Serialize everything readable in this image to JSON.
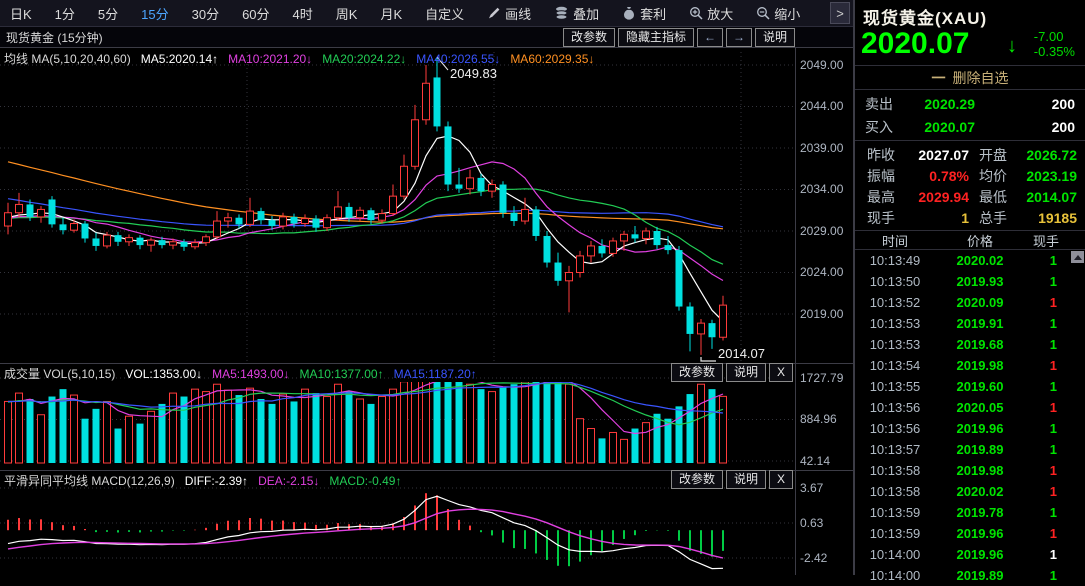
{
  "toolbar": {
    "items": [
      {
        "label": "日K"
      },
      {
        "label": "1分"
      },
      {
        "label": "5分"
      },
      {
        "label": "15分"
      },
      {
        "label": "30分"
      },
      {
        "label": "60分"
      },
      {
        "label": "4时"
      },
      {
        "label": "周K"
      },
      {
        "label": "月K"
      },
      {
        "label": "自定义"
      },
      {
        "label": "画线",
        "icon": "pencil-icon"
      },
      {
        "label": "叠加",
        "icon": "stack-icon"
      },
      {
        "label": "套利",
        "icon": "moneybag-icon"
      },
      {
        "label": "放大",
        "icon": "zoom-in-icon"
      },
      {
        "label": "缩小",
        "icon": "zoom-out-icon"
      }
    ],
    "active_index": 3,
    "more_label": ">"
  },
  "chart_header": {
    "title": "现货黄金 (15分钟)",
    "buttons": [
      "改参数",
      "隐藏主指标",
      "←",
      "→",
      "说明"
    ]
  },
  "ma_legend": {
    "prefix": "均线 MA(5,10,20,40,60)",
    "items": [
      {
        "text": "MA5:2020.14↑",
        "color": "#ffffff"
      },
      {
        "text": "MA10:2021.20↓",
        "color": "#e040e0"
      },
      {
        "text": "MA20:2024.22↓",
        "color": "#22cc55"
      },
      {
        "text": "MA40:2026.55↓",
        "color": "#3a55ff"
      },
      {
        "text": "MA60:2029.35↓",
        "color": "#ff9022"
      }
    ]
  },
  "main_chart": {
    "y_labels": [
      "2049.00",
      "2044.00",
      "2039.00",
      "2034.00",
      "2029.00",
      "2024.00",
      "2019.00"
    ],
    "high_annotation": "2049.83",
    "low_annotation": "2014.07"
  },
  "volume_pane": {
    "title": "成交量 VOL(5,10,15)",
    "legend": [
      {
        "text": "VOL:1353.00↓",
        "color": "#ffffff"
      },
      {
        "text": "MA5:1493.00↓",
        "color": "#e040e0"
      },
      {
        "text": "MA10:1377.00↑",
        "color": "#22cc55"
      },
      {
        "text": "MA15:1187.20↑",
        "color": "#3a55ff"
      }
    ],
    "buttons": [
      "改参数",
      "说明",
      "X"
    ],
    "y_labels": [
      "1727.79",
      "884.96",
      "42.14"
    ]
  },
  "macd_pane": {
    "title": "平滑异同平均线 MACD(12,26,9)",
    "legend": [
      {
        "text": "DIFF:-2.39↑",
        "color": "#ffffff"
      },
      {
        "text": "DEA:-2.15↓",
        "color": "#e040e0"
      },
      {
        "text": "MACD:-0.49↑",
        "color": "#22cc55"
      }
    ],
    "buttons": [
      "改参数",
      "说明",
      "X"
    ],
    "y_labels": [
      "3.67",
      "0.63",
      "-2.42"
    ]
  },
  "quote_panel": {
    "name": "现货黄金(XAU)",
    "price": "2020.07",
    "arrow": "↓",
    "change": "-7.00",
    "change_pct": "-0.35%",
    "remove_minus": "一",
    "remove_label": "删除自选",
    "depth": [
      {
        "label": "卖出",
        "price": "2020.29",
        "qty": "200"
      },
      {
        "label": "买入",
        "price": "2020.07",
        "qty": "200"
      }
    ],
    "quotes": [
      {
        "l1": "昨收",
        "v1": "2027.07",
        "c1": "w",
        "l2": "开盘",
        "v2": "2026.72",
        "c2": "g"
      },
      {
        "l1": "振幅",
        "v1": "0.78%",
        "c1": "r",
        "l2": "均价",
        "v2": "2023.19",
        "c2": "g"
      },
      {
        "l1": "最高",
        "v1": "2029.94",
        "c1": "r",
        "l2": "最低",
        "v2": "2014.07",
        "c2": "g"
      },
      {
        "l1": "现手",
        "v1": "1",
        "c1": "y",
        "l2": "总手",
        "v2": "19185",
        "c2": "y"
      }
    ],
    "tick_headers": [
      "时间",
      "价格",
      "现手"
    ],
    "ticks": [
      {
        "time": "10:13:49",
        "price": "2020.02",
        "vol": "1",
        "vc": "g"
      },
      {
        "time": "10:13:50",
        "price": "2019.93",
        "vol": "1",
        "vc": "g"
      },
      {
        "time": "10:13:52",
        "price": "2020.09",
        "vol": "1",
        "vc": "r"
      },
      {
        "time": "10:13:53",
        "price": "2019.91",
        "vol": "1",
        "vc": "g"
      },
      {
        "time": "10:13:53",
        "price": "2019.68",
        "vol": "1",
        "vc": "g"
      },
      {
        "time": "10:13:54",
        "price": "2019.98",
        "vol": "1",
        "vc": "r"
      },
      {
        "time": "10:13:55",
        "price": "2019.60",
        "vol": "1",
        "vc": "g"
      },
      {
        "time": "10:13:56",
        "price": "2020.05",
        "vol": "1",
        "vc": "r"
      },
      {
        "time": "10:13:56",
        "price": "2019.96",
        "vol": "1",
        "vc": "g"
      },
      {
        "time": "10:13:57",
        "price": "2019.89",
        "vol": "1",
        "vc": "g"
      },
      {
        "time": "10:13:58",
        "price": "2019.98",
        "vol": "1",
        "vc": "r"
      },
      {
        "time": "10:13:58",
        "price": "2020.02",
        "vol": "1",
        "vc": "r"
      },
      {
        "time": "10:13:59",
        "price": "2019.78",
        "vol": "1",
        "vc": "g"
      },
      {
        "time": "10:13:59",
        "price": "2019.96",
        "vol": "1",
        "vc": "r"
      },
      {
        "time": "10:14:00",
        "price": "2019.96",
        "vol": "1",
        "vc": "w"
      },
      {
        "time": "10:14:00",
        "price": "2019.89",
        "vol": "1",
        "vc": "g"
      }
    ]
  },
  "colors": {
    "up": "#ff3b3b",
    "down": "#00e0e0",
    "grid": "#33343c",
    "separator": "#3c3c46",
    "ma5": "#ffffff",
    "ma10": "#e040e0",
    "ma20": "#22cc55",
    "ma40": "#3a55ff",
    "ma60": "#ff9022",
    "macd_pos": "#ff3b3b",
    "macd_neg": "#00cc44"
  },
  "chart_data": {
    "type": "candlestick",
    "period": "15min",
    "high": 2049.83,
    "low": 2014.07,
    "last": 2020.07,
    "y_axis_main": [
      2049,
      2044,
      2039,
      2034,
      2029,
      2024,
      2019
    ],
    "y_axis_vol": [
      1727.79,
      884.96,
      42.14
    ],
    "y_axis_macd": [
      3.67,
      0.63,
      -2.42
    ],
    "candles": [
      [
        2029.6,
        2032.4,
        2028.6,
        2031.2
      ],
      [
        2031.2,
        2033.6,
        2030.6,
        2032.2
      ],
      [
        2032.2,
        2032.8,
        2030.2,
        2030.7
      ],
      [
        2030.7,
        2032.0,
        2030.0,
        2031.6
      ],
      [
        2032.8,
        2033.2,
        2029.4,
        2029.8
      ],
      [
        2029.8,
        2030.6,
        2028.6,
        2029.1
      ],
      [
        2029.1,
        2030.4,
        2028.8,
        2029.9
      ],
      [
        2029.9,
        2030.2,
        2027.6,
        2028.1
      ],
      [
        2028.1,
        2028.8,
        2026.6,
        2027.2
      ],
      [
        2027.2,
        2028.9,
        2026.9,
        2028.5
      ],
      [
        2028.5,
        2028.9,
        2027.2,
        2027.7
      ],
      [
        2027.7,
        2028.6,
        2027.2,
        2028.2
      ],
      [
        2028.2,
        2028.5,
        2026.8,
        2027.3
      ],
      [
        2027.3,
        2028.2,
        2026.5,
        2027.9
      ],
      [
        2027.9,
        2028.3,
        2026.9,
        2027.3
      ],
      [
        2027.3,
        2028.1,
        2026.8,
        2027.7
      ],
      [
        2027.7,
        2028.0,
        2026.6,
        2027.1
      ],
      [
        2027.1,
        2028.0,
        2026.8,
        2027.6
      ],
      [
        2027.6,
        2028.6,
        2027.2,
        2028.3
      ],
      [
        2028.3,
        2031.4,
        2028.0,
        2030.2
      ],
      [
        2030.2,
        2031.2,
        2029.4,
        2030.6
      ],
      [
        2030.6,
        2031.0,
        2029.3,
        2029.8
      ],
      [
        2029.8,
        2033.0,
        2029.5,
        2031.4
      ],
      [
        2031.4,
        2031.8,
        2029.8,
        2030.3
      ],
      [
        2030.3,
        2030.8,
        2029.1,
        2029.6
      ],
      [
        2029.6,
        2031.2,
        2029.2,
        2030.7
      ],
      [
        2030.7,
        2031.1,
        2029.4,
        2029.9
      ],
      [
        2029.9,
        2031.0,
        2029.5,
        2030.5
      ],
      [
        2030.5,
        2030.9,
        2028.9,
        2029.4
      ],
      [
        2029.4,
        2031.0,
        2029.0,
        2030.6
      ],
      [
        2030.6,
        2033.8,
        2030.2,
        2031.9
      ],
      [
        2031.9,
        2032.4,
        2030.1,
        2030.6
      ],
      [
        2030.6,
        2031.9,
        2030.2,
        2031.5
      ],
      [
        2031.5,
        2031.8,
        2029.8,
        2030.3
      ],
      [
        2030.3,
        2031.6,
        2029.9,
        2031.1
      ],
      [
        2031.1,
        2034.6,
        2030.8,
        2033.2
      ],
      [
        2033.2,
        2038.2,
        2032.8,
        2036.8
      ],
      [
        2036.8,
        2044.2,
        2036.4,
        2042.4
      ],
      [
        2042.4,
        2049.0,
        2041.8,
        2046.8
      ],
      [
        2047.5,
        2049.83,
        2041.0,
        2041.6
      ],
      [
        2041.6,
        2042.2,
        2033.8,
        2034.6
      ],
      [
        2034.6,
        2036.6,
        2033.6,
        2034.1
      ],
      [
        2034.1,
        2036.4,
        2033.4,
        2035.4
      ],
      [
        2035.4,
        2035.9,
        2033.2,
        2033.8
      ],
      [
        2033.8,
        2035.2,
        2033.0,
        2034.6
      ],
      [
        2034.6,
        2035.0,
        2030.6,
        2031.2
      ],
      [
        2031.2,
        2032.0,
        2029.6,
        2030.2
      ],
      [
        2030.2,
        2033.0,
        2029.8,
        2031.6
      ],
      [
        2031.6,
        2032.0,
        2027.8,
        2028.4
      ],
      [
        2028.4,
        2029.0,
        2024.6,
        2025.2
      ],
      [
        2025.2,
        2026.4,
        2022.4,
        2023.0
      ],
      [
        2023.0,
        2024.8,
        2019.2,
        2024.0
      ],
      [
        2024.0,
        2026.6,
        2023.4,
        2026.0
      ],
      [
        2026.0,
        2027.8,
        2025.2,
        2027.2
      ],
      [
        2027.2,
        2028.0,
        2025.8,
        2026.3
      ],
      [
        2026.3,
        2028.2,
        2025.9,
        2027.8
      ],
      [
        2027.8,
        2029.0,
        2026.6,
        2028.6
      ],
      [
        2028.6,
        2029.6,
        2027.6,
        2028.1
      ],
      [
        2028.1,
        2029.4,
        2027.4,
        2029.0
      ],
      [
        2029.0,
        2029.5,
        2026.8,
        2027.3
      ],
      [
        2027.3,
        2028.4,
        2026.2,
        2026.7
      ],
      [
        2026.7,
        2027.2,
        2019.4,
        2019.9
      ],
      [
        2019.9,
        2020.4,
        2014.5,
        2016.6
      ],
      [
        2016.6,
        2018.4,
        2014.07,
        2017.9
      ],
      [
        2017.9,
        2018.3,
        2014.8,
        2016.2
      ],
      [
        2016.2,
        2021.2,
        2015.8,
        2020.07
      ]
    ],
    "volumes": [
      1250,
      1420,
      1300,
      980,
      1350,
      1500,
      1380,
      900,
      1100,
      1250,
      700,
      950,
      800,
      1050,
      1200,
      1420,
      1350,
      1500,
      1450,
      1600,
      1480,
      1380,
      1520,
      1300,
      1200,
      1400,
      1250,
      1500,
      1420,
      1350,
      1600,
      1450,
      1300,
      1200,
      1350,
      1500,
      1650,
      1700,
      1720,
      1750,
      1700,
      1650,
      1600,
      1500,
      1450,
      1550,
      1600,
      1650,
      1700,
      1720,
      1700,
      1600,
      900,
      700,
      500,
      620,
      480,
      700,
      820,
      1000,
      900,
      1150,
      1400,
      1600,
      1500,
      1353
    ]
  }
}
